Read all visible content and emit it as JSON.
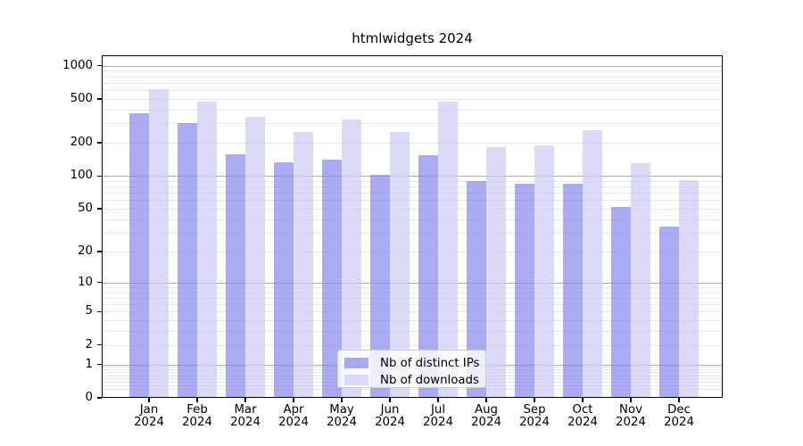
{
  "title": "htmlwidgets 2024",
  "colors": {
    "distinct_ips": "rgba(136,136,238,0.7)",
    "downloads": "rgba(204,204,245,0.7)",
    "grid_major": "#aaaaaa",
    "grid_minor": "#e7e7e7",
    "spine": "#000000",
    "legend_border": "#cccccc"
  },
  "chart_data": {
    "type": "bar",
    "title": "htmlwidgets 2024",
    "x_months": [
      "Jan",
      "Feb",
      "Mar",
      "Apr",
      "May",
      "Jun",
      "Jul",
      "Aug",
      "Sep",
      "Oct",
      "Nov",
      "Dec"
    ],
    "x_year": "2024",
    "categories": [
      "Jan 2024",
      "Feb 2024",
      "Mar 2024",
      "Apr 2024",
      "May 2024",
      "Jun 2024",
      "Jul 2024",
      "Aug 2024",
      "Sep 2024",
      "Oct 2024",
      "Nov 2024",
      "Dec 2024"
    ],
    "series": [
      {
        "name": "Nb of distinct IPs",
        "color": "rgba(136,136,238,0.7)",
        "values": [
          370,
          300,
          157,
          132,
          140,
          102,
          155,
          89,
          85,
          85,
          52,
          34
        ]
      },
      {
        "name": "Nb of downloads",
        "color": "rgba(204,204,245,0.7)",
        "values": [
          613,
          470,
          343,
          250,
          326,
          252,
          470,
          181,
          191,
          259,
          131,
          92
        ]
      }
    ],
    "xlabel": "",
    "ylabel": "",
    "y_scale": "log10(1+x)",
    "y_ticks": [
      0,
      1,
      2,
      5,
      10,
      20,
      50,
      100,
      200,
      500,
      1000
    ],
    "y_tick_labels": [
      "0",
      "1",
      "2",
      "5",
      "10",
      "20",
      "50",
      "100",
      "200",
      "500",
      "1000"
    ],
    "ylim": [
      0,
      1240
    ],
    "grid": "both",
    "legend_position": "lower center"
  },
  "legend": {
    "items": [
      {
        "label": "Nb of distinct IPs"
      },
      {
        "label": "Nb of downloads"
      }
    ]
  }
}
